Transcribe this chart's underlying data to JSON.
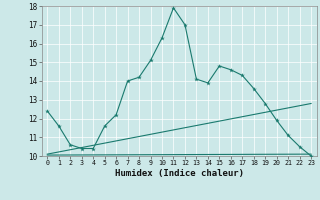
{
  "title": "",
  "xlabel": "Humidex (Indice chaleur)",
  "bg_color": "#cce8e8",
  "grid_color": "#ffffff",
  "line_color": "#1a7a6e",
  "xlim": [
    -0.5,
    23.5
  ],
  "ylim": [
    10,
    18
  ],
  "xticks": [
    0,
    1,
    2,
    3,
    4,
    5,
    6,
    7,
    8,
    9,
    10,
    11,
    12,
    13,
    14,
    15,
    16,
    17,
    18,
    19,
    20,
    21,
    22,
    23
  ],
  "yticks": [
    10,
    11,
    12,
    13,
    14,
    15,
    16,
    17,
    18
  ],
  "line1_x": [
    0,
    1,
    2,
    3,
    4,
    5,
    6,
    7,
    8,
    9,
    10,
    11,
    12,
    13,
    14,
    15,
    16,
    17,
    18,
    19,
    20,
    21,
    22,
    23
  ],
  "line1_y": [
    12.4,
    11.6,
    10.6,
    10.4,
    10.4,
    11.6,
    12.2,
    14.0,
    14.2,
    15.1,
    16.3,
    17.9,
    17.0,
    14.1,
    13.9,
    14.8,
    14.6,
    14.3,
    13.6,
    12.8,
    11.9,
    11.1,
    10.5,
    10.0
  ],
  "line2_x": [
    0,
    23
  ],
  "line2_y": [
    10.1,
    12.8
  ],
  "line3_x": [
    0,
    23
  ],
  "line3_y": [
    10.05,
    10.1
  ]
}
